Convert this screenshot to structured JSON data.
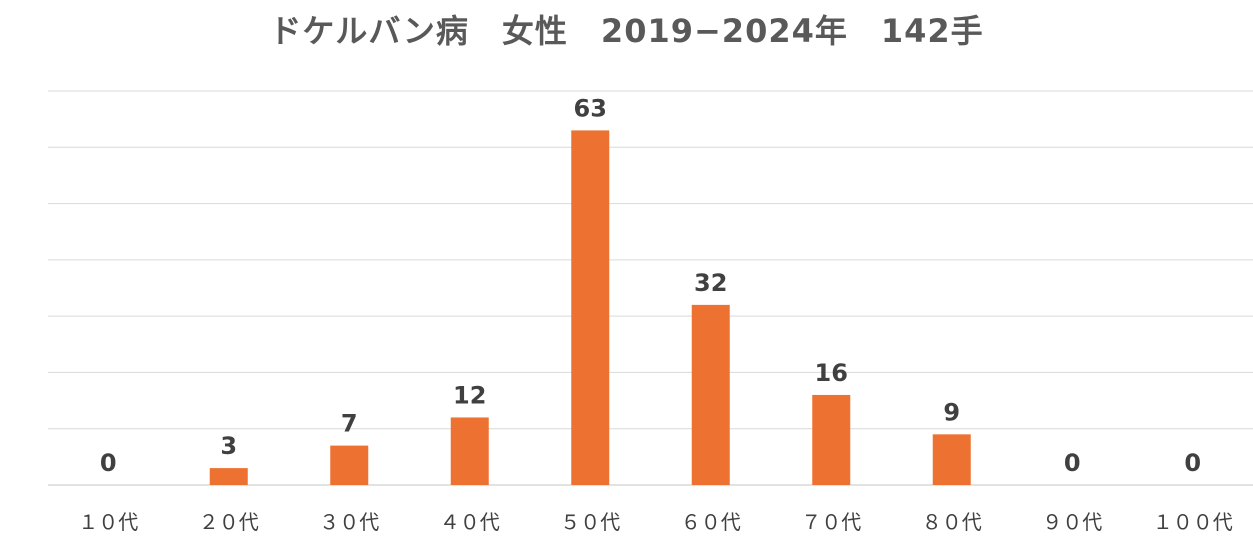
{
  "chart_data": {
    "type": "bar",
    "title": "ドケルバン病　女性　2019−2024年　142手",
    "categories": [
      "１０代",
      "２０代",
      "３０代",
      "４０代",
      "５０代",
      "６０代",
      "７０代",
      "８０代",
      "９０代",
      "１００代"
    ],
    "values": [
      0,
      3,
      7,
      12,
      63,
      32,
      16,
      9,
      0,
      0
    ],
    "ylim": [
      0,
      70
    ],
    "grid": true,
    "legend": "none",
    "colors": {
      "bar": "#ed7131",
      "grid": "#d9d9d9",
      "label": "#404040",
      "title": "#595959"
    }
  }
}
